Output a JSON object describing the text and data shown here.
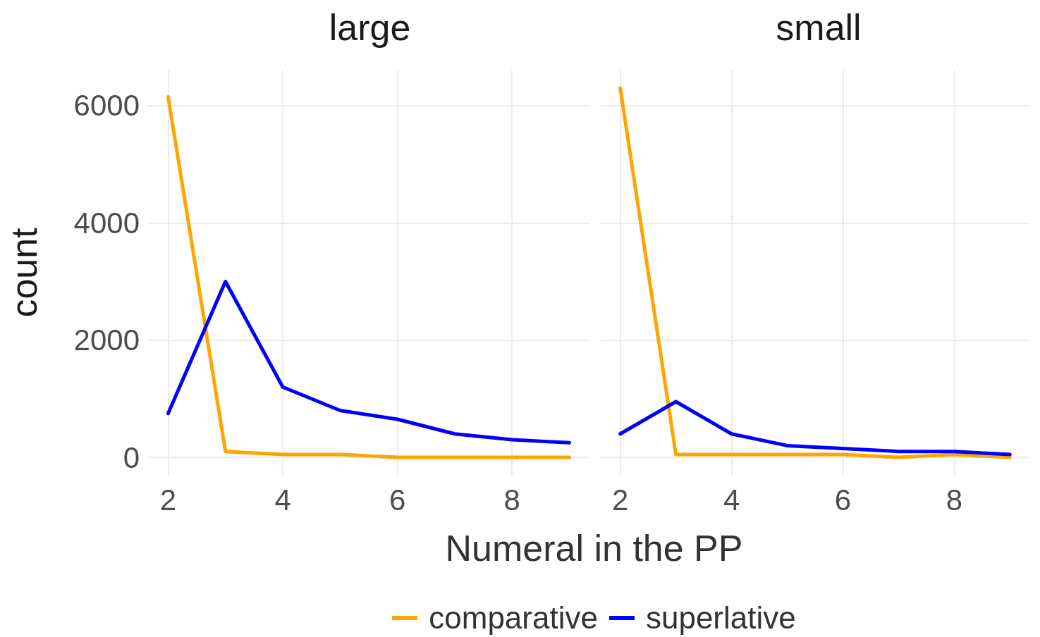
{
  "chart_data": [
    {
      "type": "line",
      "title": "large",
      "xlabel": "Numeral in the PP",
      "ylabel": "count",
      "x": [
        2,
        3,
        4,
        5,
        6,
        7,
        8,
        9
      ],
      "series": [
        {
          "name": "comparative",
          "color": "#ffa500",
          "values": [
            6150,
            100,
            50,
            50,
            0,
            0,
            0,
            0
          ]
        },
        {
          "name": "superlative",
          "color": "#0000ff",
          "values": [
            750,
            3000,
            1200,
            800,
            650,
            400,
            300,
            250
          ]
        }
      ],
      "xlim": [
        1.65,
        9.35
      ],
      "xticks": [
        2,
        4,
        6,
        8
      ],
      "ylim": [
        -300,
        6600
      ],
      "yticks": [
        0,
        2000,
        4000,
        6000
      ],
      "grid": true,
      "legend": "bottom",
      "marker": "none"
    },
    {
      "type": "line",
      "title": "small",
      "x": [
        2,
        3,
        4,
        5,
        6,
        7,
        8,
        9
      ],
      "series": [
        {
          "color": "#ffa500",
          "values": [
            6300,
            50,
            50,
            50,
            50,
            0,
            50,
            0
          ]
        },
        {
          "color": "#0000ff",
          "values": [
            400,
            950,
            400,
            200,
            150,
            100,
            100,
            50
          ]
        }
      ],
      "xlim": [
        1.65,
        9.35
      ],
      "xticks": [
        2,
        4,
        6,
        8
      ],
      "ylim": [
        -300,
        6600
      ],
      "yticks": [
        0,
        2000,
        4000,
        6000
      ],
      "grid": true,
      "marker": "none",
      "tick_labels": "x"
    }
  ]
}
